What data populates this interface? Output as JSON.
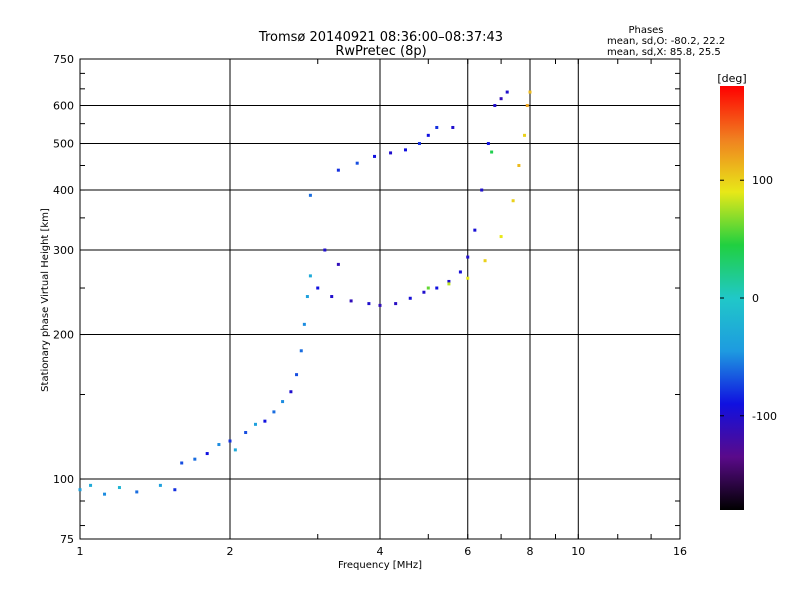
{
  "chart_data": {
    "type": "scatter",
    "title": "Tromsø 20140921 08:36:00–08:37:43",
    "subtitle": "RwPretec (8p)",
    "xlabel": "Frequency [MHz]",
    "ylabel": "Stationary phase Virtual Height [km]",
    "x_scale": "log",
    "y_scale": "log",
    "xlim": [
      1,
      16
    ],
    "ylim": [
      75,
      750
    ],
    "x_ticks": [
      "1",
      "2",
      "4",
      "6",
      "8",
      "10",
      "16"
    ],
    "y_ticks": [
      "75",
      "100",
      "200",
      "300",
      "400",
      "500",
      "600",
      "750"
    ],
    "grid": true,
    "stats": {
      "heading": "Phases",
      "line_o": "mean, sd,O: -80.2, 22.2",
      "line_x": "mean, sd,X:  85.8, 25.5"
    },
    "colorbar": {
      "label": "[deg]",
      "range": [
        -180,
        180
      ],
      "ticks": [
        "100",
        "0",
        "-100"
      ],
      "colors": [
        "#000000",
        "#5a0a8a",
        "#1010e0",
        "#1e9be0",
        "#20c8c8",
        "#20d040",
        "#e8e818",
        "#f08020",
        "#ff0000"
      ]
    },
    "series": [
      {
        "points": [
          [
            1.0,
            95,
            -40
          ],
          [
            1.05,
            97,
            -30
          ],
          [
            1.12,
            93,
            -50
          ],
          [
            1.2,
            96,
            -20
          ],
          [
            1.3,
            94,
            -60
          ],
          [
            1.45,
            97,
            -40
          ],
          [
            1.55,
            95,
            -80
          ],
          [
            1.6,
            108,
            -70
          ],
          [
            1.7,
            110,
            -60
          ],
          [
            1.8,
            113,
            -90
          ],
          [
            1.9,
            118,
            -50
          ],
          [
            2.0,
            120,
            -80
          ],
          [
            2.05,
            115,
            -30
          ],
          [
            2.15,
            125,
            -70
          ],
          [
            2.25,
            130,
            -40
          ],
          [
            2.35,
            132,
            -90
          ],
          [
            2.45,
            138,
            -60
          ],
          [
            2.55,
            145,
            -50
          ],
          [
            2.65,
            152,
            -100
          ],
          [
            2.72,
            165,
            -70
          ],
          [
            2.78,
            185,
            -60
          ],
          [
            2.82,
            210,
            -50
          ],
          [
            2.86,
            240,
            -40
          ],
          [
            2.9,
            265,
            -30
          ],
          [
            3.0,
            250,
            -90
          ],
          [
            3.2,
            240,
            -100
          ],
          [
            3.5,
            235,
            -110
          ],
          [
            3.8,
            232,
            -100
          ],
          [
            4.0,
            230,
            -110
          ],
          [
            4.3,
            232,
            -105
          ],
          [
            4.6,
            238,
            -95
          ],
          [
            4.9,
            245,
            -100
          ],
          [
            5.2,
            250,
            -90
          ],
          [
            5.5,
            258,
            -100
          ],
          [
            5.8,
            270,
            -95
          ],
          [
            6.0,
            290,
            -100
          ],
          [
            6.2,
            330,
            -95
          ],
          [
            6.4,
            400,
            -100
          ],
          [
            6.6,
            500,
            -90
          ],
          [
            6.8,
            600,
            -100
          ],
          [
            7.0,
            620,
            -110
          ],
          [
            7.2,
            640,
            -100
          ],
          [
            3.3,
            440,
            -80
          ],
          [
            3.6,
            455,
            -70
          ],
          [
            3.9,
            470,
            -90
          ],
          [
            4.2,
            478,
            -100
          ],
          [
            4.5,
            485,
            -90
          ],
          [
            4.8,
            500,
            -80
          ],
          [
            5.0,
            520,
            -90
          ],
          [
            5.2,
            540,
            -80
          ],
          [
            5.6,
            540,
            -100
          ],
          [
            5.0,
            250,
            60
          ],
          [
            5.5,
            255,
            80
          ],
          [
            6.0,
            262,
            90
          ],
          [
            6.5,
            285,
            100
          ],
          [
            7.0,
            320,
            90
          ],
          [
            7.4,
            380,
            100
          ],
          [
            7.6,
            450,
            110
          ],
          [
            7.8,
            520,
            100
          ],
          [
            7.9,
            600,
            120
          ],
          [
            8.0,
            640,
            110
          ],
          [
            3.1,
            300,
            -100
          ],
          [
            3.3,
            280,
            -110
          ],
          [
            2.9,
            390,
            -60
          ],
          [
            6.7,
            480,
            40
          ]
        ]
      }
    ]
  }
}
